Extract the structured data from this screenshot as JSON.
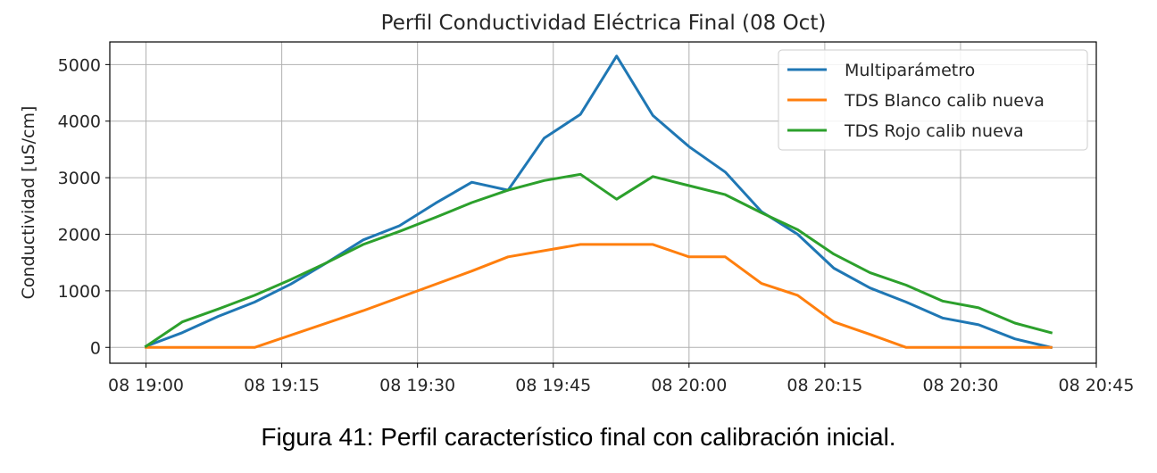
{
  "chart_data": {
    "type": "line",
    "title": "Perfil Conductividad Eléctrica Final (08 Oct)",
    "xlabel": "",
    "ylabel": "Conductividad [uS/cm]",
    "xlim": [
      "08 18:56",
      "08 20:45"
    ],
    "ylim": [
      -280,
      5400
    ],
    "x_ticks": [
      "08 19:00",
      "08 19:15",
      "08 19:30",
      "08 19:45",
      "08 20:00",
      "08 20:15",
      "08 20:30",
      "08 20:45"
    ],
    "y_ticks": [
      0,
      1000,
      2000,
      3000,
      4000,
      5000
    ],
    "grid": true,
    "legend_position": "top-right",
    "series": [
      {
        "name": "Multiparámetro",
        "color": "#1f77b4",
        "x": [
          "08 19:00",
          "08 19:04",
          "08 19:08",
          "08 19:12",
          "08 19:16",
          "08 19:20",
          "08 19:24",
          "08 19:28",
          "08 19:32",
          "08 19:36",
          "08 19:40",
          "08 19:44",
          "08 19:48",
          "08 19:52",
          "08 19:56",
          "08 20:00",
          "08 20:04",
          "08 20:08",
          "08 20:12",
          "08 20:16",
          "08 20:20",
          "08 20:24",
          "08 20:28",
          "08 20:32",
          "08 20:36",
          "08 20:40"
        ],
        "y": [
          20,
          260,
          550,
          800,
          1120,
          1500,
          1900,
          2150,
          2550,
          2920,
          2780,
          3700,
          4120,
          5150,
          4100,
          3550,
          3100,
          2400,
          2000,
          1400,
          1050,
          800,
          520,
          400,
          150,
          0
        ]
      },
      {
        "name": "TDS Blanco calib nueva",
        "color": "#ff7f0e",
        "x": [
          "08 19:00",
          "08 19:12",
          "08 19:24",
          "08 19:36",
          "08 19:40",
          "08 19:48",
          "08 19:52",
          "08 19:56",
          "08 20:00",
          "08 20:04",
          "08 20:08",
          "08 20:12",
          "08 20:16",
          "08 20:20",
          "08 20:24",
          "08 20:28",
          "08 20:32",
          "08 20:36",
          "08 20:40"
        ],
        "y": [
          0,
          0,
          650,
          1350,
          1600,
          1820,
          1820,
          1820,
          1600,
          1600,
          1130,
          920,
          450,
          230,
          0,
          0,
          0,
          0,
          0
        ]
      },
      {
        "name": "TDS Rojo calib nueva",
        "color": "#2ca02c",
        "x": [
          "08 19:00",
          "08 19:04",
          "08 19:08",
          "08 19:12",
          "08 19:16",
          "08 19:20",
          "08 19:24",
          "08 19:28",
          "08 19:32",
          "08 19:36",
          "08 19:40",
          "08 19:44",
          "08 19:48",
          "08 19:52",
          "08 19:56",
          "08 20:00",
          "08 20:04",
          "08 20:08",
          "08 20:12",
          "08 20:16",
          "08 20:20",
          "08 20:24",
          "08 20:28",
          "08 20:32",
          "08 20:36",
          "08 20:40"
        ],
        "y": [
          20,
          450,
          680,
          920,
          1200,
          1500,
          1820,
          2050,
          2300,
          2560,
          2780,
          2950,
          3060,
          2620,
          3020,
          2860,
          2700,
          2380,
          2080,
          1650,
          1320,
          1100,
          820,
          700,
          430,
          260
        ]
      }
    ]
  },
  "caption": "Figura 41: Perfil característico final con calibración inicial."
}
